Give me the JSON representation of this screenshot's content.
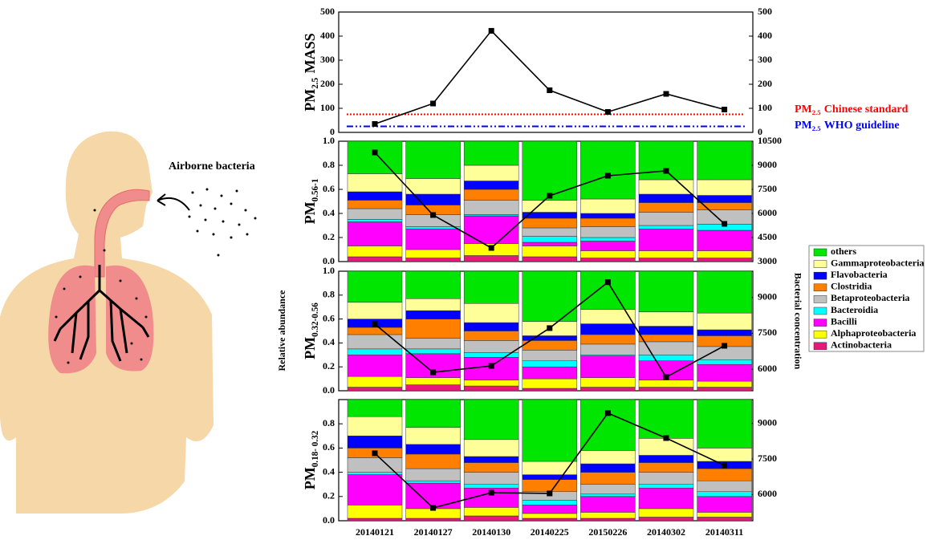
{
  "illustration": {
    "label": "Airborne bacteria"
  },
  "chart_data": {
    "type": "panels",
    "categories": [
      "20140121",
      "20140127",
      "20140130",
      "20140225",
      "20150226",
      "20140302",
      "20140311"
    ],
    "y_label": "Relative abundance",
    "y2_label": "Bacterial concentration",
    "legend": [
      {
        "name": "Actinobacteria",
        "color": "#e8177a"
      },
      {
        "name": "Alphaproteobacteria",
        "color": "#ffff00"
      },
      {
        "name": "Bacilli",
        "color": "#ff00ff"
      },
      {
        "name": "Bacteroidia",
        "color": "#00ffff"
      },
      {
        "name": "Betaproteobacteria",
        "color": "#c0c0c0"
      },
      {
        "name": "Clostridia",
        "color": "#ff8000"
      },
      {
        "name": "Flavobacteria",
        "color": "#0000ff"
      },
      {
        "name": "Gammaproteobacteria",
        "color": "#ffff99"
      },
      {
        "name": "others",
        "color": "#00e600"
      }
    ],
    "panels": [
      {
        "type": "line",
        "label": {
          "main": "PM",
          "sub": "2.5",
          "rest": "MASS"
        },
        "values": [
          35,
          120,
          422,
          175,
          85,
          160,
          95
        ],
        "color": "#000000",
        "ylim": [
          0,
          500
        ],
        "yticks": [
          0,
          100,
          200,
          300,
          400,
          500
        ],
        "y2lim": [
          0,
          500
        ],
        "y2ticks": [
          0,
          100,
          200,
          300,
          400,
          500
        ],
        "references": [
          {
            "label": {
              "main": "PM",
              "sub": "2.5",
              "rest": "Chinese standard"
            },
            "value": 75,
            "color": "#ff0000",
            "style": "dotted"
          },
          {
            "label": {
              "main": "PM",
              "sub": "2.5",
              "rest": "WHO guideline"
            },
            "value": 25,
            "color": "#0000ff",
            "style": "dashdot"
          }
        ]
      },
      {
        "type": "stacked-bar-line",
        "label": {
          "main": "PM",
          "sub": "0.56-1"
        },
        "ylim": [
          0,
          1
        ],
        "yticks": [
          {
            "value": 0,
            "label": "0.0"
          },
          0.2,
          0.4,
          0.6,
          0.8,
          {
            "value": 1,
            "label": "1.0"
          }
        ],
        "stacks": [
          [
            0.04,
            0.03,
            0.05,
            0.04,
            0.03,
            0.03,
            0.03
          ],
          [
            0.09,
            0.07,
            0.1,
            0.09,
            0.06,
            0.06,
            0.06
          ],
          [
            0.2,
            0.17,
            0.23,
            0.03,
            0.08,
            0.18,
            0.17
          ],
          [
            0.02,
            0.02,
            0.01,
            0.05,
            0.03,
            0.03,
            0.05
          ],
          [
            0.09,
            0.1,
            0.12,
            0.07,
            0.09,
            0.11,
            0.12
          ],
          [
            0.07,
            0.08,
            0.09,
            0.08,
            0.07,
            0.08,
            0.06
          ],
          [
            0.07,
            0.09,
            0.07,
            0.05,
            0.04,
            0.07,
            0.06
          ],
          [
            0.15,
            0.13,
            0.13,
            0.1,
            0.12,
            0.12,
            0.13
          ],
          [
            0.27,
            0.31,
            0.2,
            0.49,
            0.48,
            0.32,
            0.32
          ]
        ],
        "line_values": [
          9800,
          5900,
          3850,
          7100,
          8350,
          8650,
          5350
        ],
        "y2lim": [
          3000,
          10500
        ],
        "y2ticks": [
          3000,
          4500,
          6000,
          7500,
          9000,
          10500
        ]
      },
      {
        "type": "stacked-bar-line",
        "label": {
          "main": "PM",
          "sub": "0.32-0.56"
        },
        "ylim": [
          0,
          1
        ],
        "yticks": [
          {
            "value": 0,
            "label": "0.0"
          },
          0.2,
          0.4,
          0.6,
          0.8,
          {
            "value": 1,
            "label": "1.0"
          }
        ],
        "stacks": [
          [
            0.03,
            0.05,
            0.04,
            0.02,
            0.03,
            0.03,
            0.03
          ],
          [
            0.09,
            0.06,
            0.05,
            0.08,
            0.08,
            0.06,
            0.05
          ],
          [
            0.18,
            0.2,
            0.19,
            0.1,
            0.18,
            0.16,
            0.14
          ],
          [
            0.05,
            0.04,
            0.04,
            0.05,
            0.01,
            0.05,
            0.04
          ],
          [
            0.12,
            0.09,
            0.1,
            0.09,
            0.09,
            0.11,
            0.11
          ],
          [
            0.06,
            0.16,
            0.08,
            0.08,
            0.08,
            0.06,
            0.09
          ],
          [
            0.07,
            0.07,
            0.07,
            0.04,
            0.09,
            0.07,
            0.05
          ],
          [
            0.14,
            0.1,
            0.16,
            0.12,
            0.12,
            0.12,
            0.14
          ],
          [
            0.26,
            0.23,
            0.27,
            0.42,
            0.32,
            0.34,
            0.35
          ]
        ],
        "line_values": [
          7890,
          5870,
          6140,
          7720,
          9640,
          5670,
          6980
        ],
        "y2lim": [
          5100,
          10100
        ],
        "y2ticks": [
          6000,
          7500,
          9000
        ]
      },
      {
        "type": "stacked-bar-line",
        "label": {
          "main": "PM",
          "sub": "0.18- 0.32"
        },
        "ylim": [
          0,
          1
        ],
        "yticks": [
          {
            "value": 0,
            "label": "0.0"
          },
          0.2,
          0.4,
          0.6,
          0.8
        ],
        "stacks": [
          [
            0.02,
            0.02,
            0.04,
            0.02,
            0.02,
            0.03,
            0.03
          ],
          [
            0.11,
            0.08,
            0.07,
            0.04,
            0.05,
            0.07,
            0.04
          ],
          [
            0.25,
            0.21,
            0.16,
            0.07,
            0.13,
            0.17,
            0.13
          ],
          [
            0.02,
            0.02,
            0.03,
            0.04,
            0.02,
            0.03,
            0.04
          ],
          [
            0.12,
            0.1,
            0.1,
            0.07,
            0.08,
            0.1,
            0.09
          ],
          [
            0.08,
            0.12,
            0.08,
            0.1,
            0.1,
            0.08,
            0.1
          ],
          [
            0.1,
            0.08,
            0.05,
            0.04,
            0.07,
            0.06,
            0.06
          ],
          [
            0.16,
            0.14,
            0.14,
            0.11,
            0.11,
            0.14,
            0.11
          ],
          [
            0.14,
            0.23,
            0.33,
            0.51,
            0.42,
            0.32,
            0.4
          ]
        ],
        "line_values": [
          7740,
          5440,
          6080,
          6050,
          9430,
          8380,
          7230
        ],
        "y2lim": [
          4900,
          10000
        ],
        "y2ticks": [
          6000,
          7500,
          9000
        ]
      }
    ]
  }
}
